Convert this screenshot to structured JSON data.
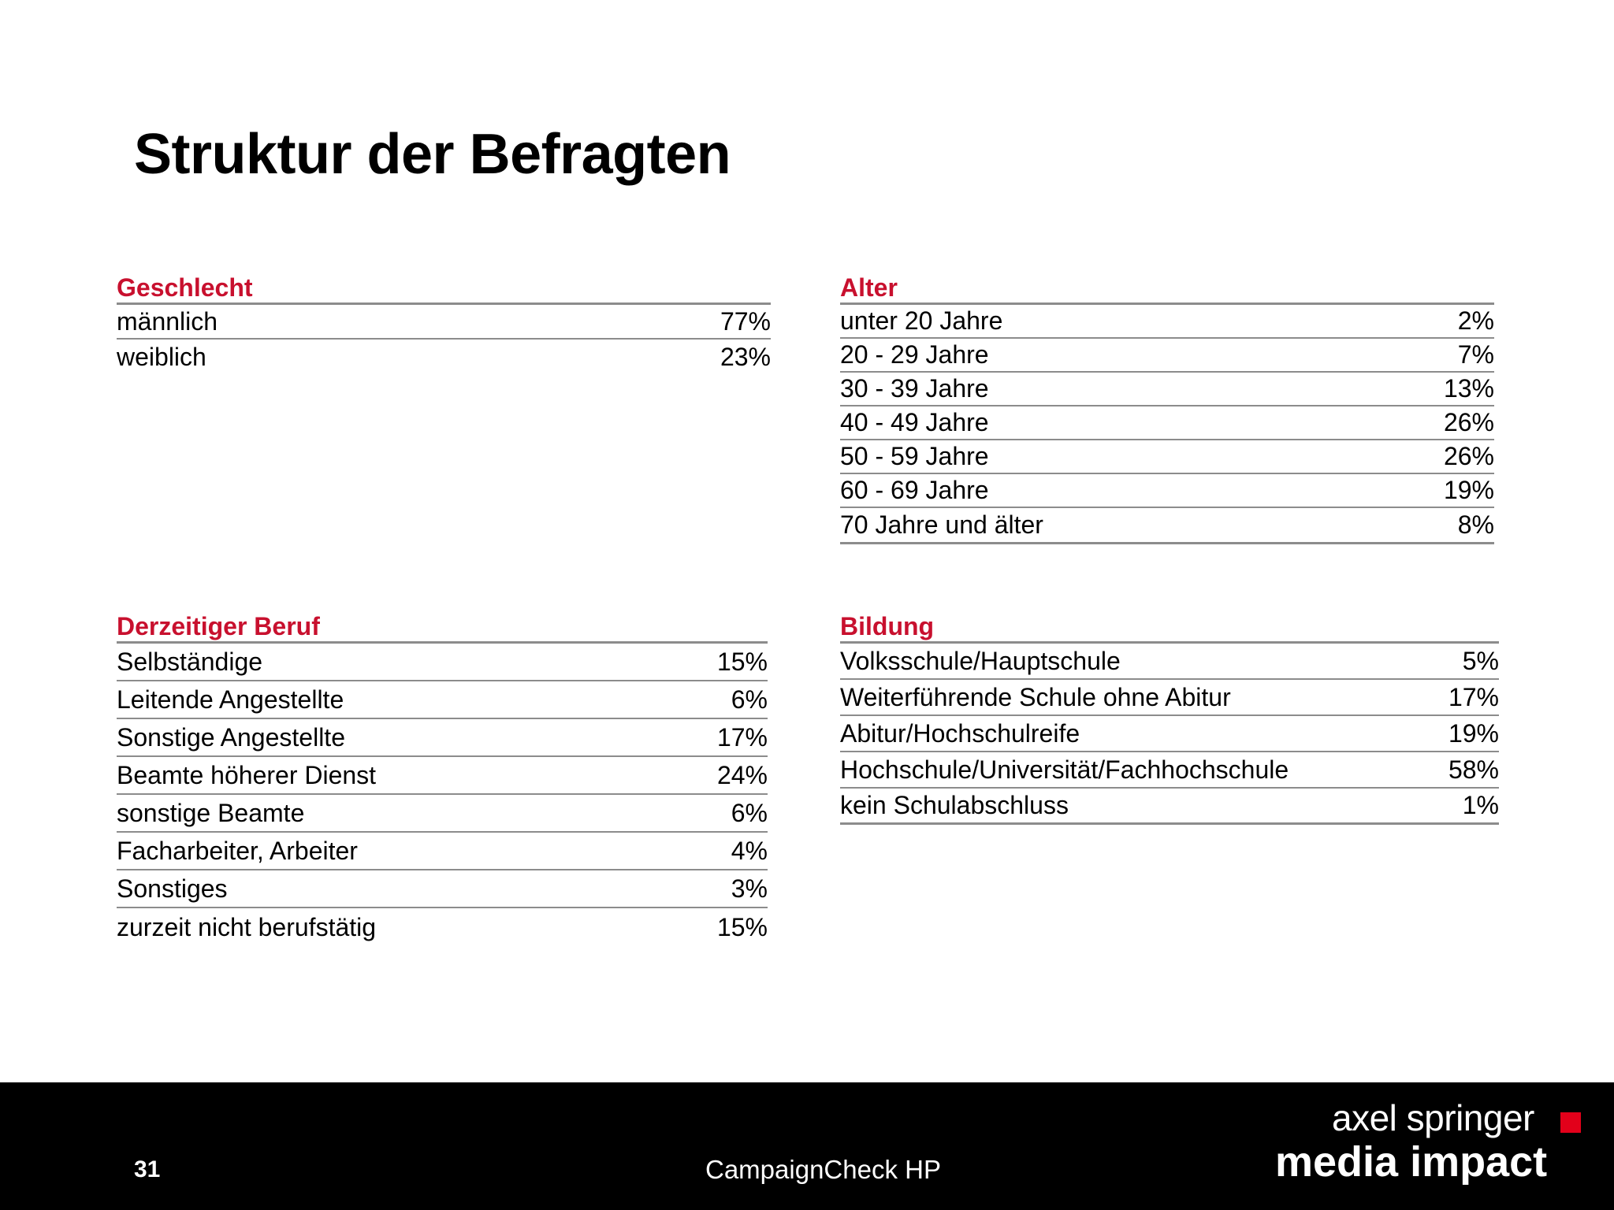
{
  "title": "Struktur der Befragten",
  "colors": {
    "accent": "#c8102e",
    "rule": "#8c8c8c",
    "footer_bg": "#000000",
    "logo_square": "#e2001a"
  },
  "sections": {
    "geschlecht": {
      "heading": "Geschlecht",
      "rows": [
        {
          "label": "männlich",
          "value": "77%"
        },
        {
          "label": "weiblich",
          "value": "23%"
        }
      ]
    },
    "alter": {
      "heading": "Alter",
      "rows": [
        {
          "label": "unter 20 Jahre",
          "value": "2%"
        },
        {
          "label": "20 - 29 Jahre",
          "value": "7%"
        },
        {
          "label": "30 - 39 Jahre",
          "value": "13%"
        },
        {
          "label": "40 - 49 Jahre",
          "value": "26%"
        },
        {
          "label": "50 - 59 Jahre",
          "value": "26%"
        },
        {
          "label": "60 - 69 Jahre",
          "value": "19%"
        },
        {
          "label": "70 Jahre und älter",
          "value": "8%"
        }
      ]
    },
    "beruf": {
      "heading": "Derzeitiger Beruf",
      "rows": [
        {
          "label": "Selbständige",
          "value": "15%"
        },
        {
          "label": "Leitende Angestellte",
          "value": "6%"
        },
        {
          "label": "Sonstige Angestellte",
          "value": "17%"
        },
        {
          "label": "Beamte höherer Dienst",
          "value": "24%"
        },
        {
          "label": "sonstige Beamte",
          "value": "6%"
        },
        {
          "label": "Facharbeiter, Arbeiter",
          "value": "4%"
        },
        {
          "label": "Sonstiges",
          "value": "3%"
        },
        {
          "label": "zurzeit nicht berufstätig",
          "value": "15%"
        }
      ]
    },
    "bildung": {
      "heading": "Bildung",
      "rows": [
        {
          "label": "Volksschule/Hauptschule",
          "value": "5%"
        },
        {
          "label": "Weiterführende Schule ohne Abitur",
          "value": "17%"
        },
        {
          "label": "Abitur/Hochschulreife",
          "value": "19%"
        },
        {
          "label": "Hochschule/Universität/Fachhochschule",
          "value": "58%"
        },
        {
          "label": "kein Schulabschluss",
          "value": "1%"
        }
      ]
    }
  },
  "footer": {
    "page_number": "31",
    "center_text": "CampaignCheck HP",
    "logo_line1": "axel springer",
    "logo_line2": "media impact"
  }
}
